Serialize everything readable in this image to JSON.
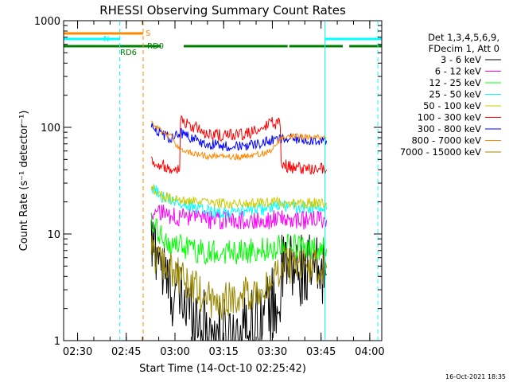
{
  "chart_data": {
    "type": "line",
    "title": "RHESSI Observing Summary Count Rates",
    "xlabel": "Start Time (14-Oct-10 02:25:42)",
    "ylabel": "Count Rate (s⁻¹ detector⁻¹)",
    "y_scale": "log",
    "ylim": [
      1,
      1000
    ],
    "y_ticks": [
      {
        "value": 1,
        "label": "1"
      },
      {
        "value": 10,
        "label": "10"
      },
      {
        "value": 100,
        "label": "100"
      },
      {
        "value": 1000,
        "label": "1000"
      }
    ],
    "x_unit": "minutes after 02:25:42",
    "xlim": [
      0,
      98
    ],
    "x_ticks": [
      {
        "value": 4.3,
        "label": "02:30"
      },
      {
        "value": 19.3,
        "label": "02:45"
      },
      {
        "value": 34.3,
        "label": "03:00"
      },
      {
        "value": 49.3,
        "label": "03:15"
      },
      {
        "value": 64.3,
        "label": "03:30"
      },
      {
        "value": 79.3,
        "label": "03:45"
      },
      {
        "value": 94.3,
        "label": "04:00"
      }
    ],
    "legend_header": [
      "Det 1,3,4,5,6,9,",
      "FDecim 1, Att 0"
    ],
    "legend_position": "right",
    "series": [
      {
        "name": "3 - 6 keV",
        "color": "#000000",
        "values": [
          [
            27,
            7.5
          ],
          [
            30,
            4.5
          ],
          [
            33,
            3
          ],
          [
            36,
            2.5
          ],
          [
            40,
            1.8
          ],
          [
            44,
            1.3
          ],
          [
            48,
            1.1
          ],
          [
            52,
            1.1
          ],
          [
            56,
            1.3
          ],
          [
            60,
            1.6
          ],
          [
            64,
            2.2
          ],
          [
            67,
            4.5
          ],
          [
            70,
            4.8
          ],
          [
            74,
            4.5
          ],
          [
            78,
            4.3
          ],
          [
            81,
            4.2
          ]
        ]
      },
      {
        "name": "6 - 12 keV",
        "color": "#ff00ff",
        "values": [
          [
            27,
            16
          ],
          [
            30,
            15.5
          ],
          [
            33,
            15
          ],
          [
            36,
            14.5
          ],
          [
            40,
            14
          ],
          [
            44,
            13.5
          ],
          [
            48,
            13.5
          ],
          [
            52,
            13.5
          ],
          [
            56,
            13.5
          ],
          [
            60,
            13.5
          ],
          [
            64,
            13.5
          ],
          [
            67,
            14
          ],
          [
            70,
            13.5
          ],
          [
            74,
            13.5
          ],
          [
            78,
            13.5
          ],
          [
            81,
            13.5
          ]
        ]
      },
      {
        "name": "12 - 25 keV",
        "color": "#00ff00",
        "values": [
          [
            27,
            12
          ],
          [
            30,
            9.5
          ],
          [
            33,
            8
          ],
          [
            36,
            7.5
          ],
          [
            40,
            7
          ],
          [
            44,
            6.8
          ],
          [
            48,
            6.8
          ],
          [
            52,
            6.8
          ],
          [
            56,
            7
          ],
          [
            60,
            7
          ],
          [
            64,
            7.2
          ],
          [
            67,
            8
          ],
          [
            70,
            7.8
          ],
          [
            74,
            7.5
          ],
          [
            78,
            7.3
          ],
          [
            81,
            7.2
          ]
        ]
      },
      {
        "name": "25 - 50 keV",
        "color": "#00ffff",
        "values": [
          [
            27,
            27
          ],
          [
            30,
            23
          ],
          [
            33,
            21
          ],
          [
            36,
            19
          ],
          [
            40,
            17.5
          ],
          [
            44,
            16.5
          ],
          [
            48,
            16
          ],
          [
            52,
            16
          ],
          [
            56,
            16.5
          ],
          [
            60,
            17
          ],
          [
            64,
            17.5
          ],
          [
            67,
            18.5
          ],
          [
            70,
            18
          ],
          [
            74,
            17.5
          ],
          [
            78,
            17.5
          ],
          [
            81,
            17
          ]
        ]
      },
      {
        "name": "50 - 100 keV",
        "color": "#cccc00",
        "values": [
          [
            27,
            28
          ],
          [
            30,
            23
          ],
          [
            33,
            21
          ],
          [
            36,
            20.5
          ],
          [
            40,
            20
          ],
          [
            44,
            19.5
          ],
          [
            48,
            19.5
          ],
          [
            52,
            19.5
          ],
          [
            56,
            19.5
          ],
          [
            60,
            19.5
          ],
          [
            64,
            20
          ],
          [
            67,
            20
          ],
          [
            70,
            19.5
          ],
          [
            74,
            19.5
          ],
          [
            78,
            19.5
          ],
          [
            81,
            19.5
          ]
        ]
      },
      {
        "name": "100 - 300 keV",
        "color": "#ff0000",
        "values": [
          [
            27,
            50
          ],
          [
            30,
            45
          ],
          [
            33,
            42
          ],
          [
            36,
            120
          ],
          [
            40,
            100
          ],
          [
            44,
            88
          ],
          [
            48,
            85
          ],
          [
            52,
            84
          ],
          [
            56,
            86
          ],
          [
            60,
            92
          ],
          [
            64,
            110
          ],
          [
            67,
            45
          ],
          [
            70,
            42
          ],
          [
            74,
            41
          ],
          [
            78,
            41
          ],
          [
            81,
            40
          ]
        ]
      },
      {
        "name": "300 - 800 keV",
        "color": "#0000ff",
        "values": [
          [
            27,
            105
          ],
          [
            30,
            88
          ],
          [
            33,
            78
          ],
          [
            36,
            90
          ],
          [
            40,
            78
          ],
          [
            44,
            70
          ],
          [
            48,
            68
          ],
          [
            52,
            67
          ],
          [
            56,
            68
          ],
          [
            60,
            70
          ],
          [
            64,
            75
          ],
          [
            67,
            77
          ],
          [
            70,
            78
          ],
          [
            74,
            77
          ],
          [
            78,
            76
          ],
          [
            81,
            75
          ]
        ]
      },
      {
        "name": "800 - 7000 keV",
        "color": "#ff8800",
        "values": [
          [
            27,
            110
          ],
          [
            30,
            92
          ],
          [
            33,
            82
          ],
          [
            36,
            62
          ],
          [
            40,
            57
          ],
          [
            44,
            54
          ],
          [
            48,
            53
          ],
          [
            52,
            53
          ],
          [
            56,
            54
          ],
          [
            60,
            56
          ],
          [
            64,
            60
          ],
          [
            67,
            80
          ],
          [
            70,
            82
          ],
          [
            74,
            82
          ],
          [
            78,
            81
          ],
          [
            81,
            80
          ]
        ]
      },
      {
        "name": "7000 - 15000 keV",
        "color": "#998800",
        "values": [
          [
            27,
            7
          ],
          [
            30,
            5.5
          ],
          [
            33,
            4.5
          ],
          [
            36,
            4
          ],
          [
            40,
            3.3
          ],
          [
            44,
            2.5
          ],
          [
            48,
            2.3
          ],
          [
            52,
            2.5
          ],
          [
            56,
            2.8
          ],
          [
            60,
            3
          ],
          [
            64,
            3.5
          ],
          [
            67,
            5
          ],
          [
            70,
            5
          ],
          [
            74,
            5
          ],
          [
            78,
            5
          ],
          [
            81,
            4.8
          ]
        ]
      }
    ],
    "annotations": [
      {
        "label": "S",
        "color": "#ff8800",
        "segments": [
          [
            0,
            24.5
          ]
        ]
      },
      {
        "label": "N",
        "color": "#00ffff",
        "segments": [
          [
            0,
            17.3
          ],
          [
            80.5,
            98
          ]
        ]
      },
      {
        "label": "RD0",
        "color": "#008000",
        "segments": [
          [
            0,
            30
          ],
          [
            37,
            69
          ],
          [
            69.5,
            86
          ],
          [
            88,
            98
          ]
        ]
      },
      {
        "label": "RD6",
        "color": "#008000",
        "segments": []
      }
    ],
    "vertical_markers": [
      {
        "x": 17.3,
        "color": "#00ffff",
        "style": "dashed"
      },
      {
        "x": 24.5,
        "color": "#ff8800",
        "style": "dashed"
      },
      {
        "x": 80.5,
        "color": "#00ffff",
        "style": "solid"
      },
      {
        "x": 96.8,
        "color": "#00ffff",
        "style": "dashed"
      }
    ],
    "footer_text": "16-Oct-2021 18:35"
  }
}
